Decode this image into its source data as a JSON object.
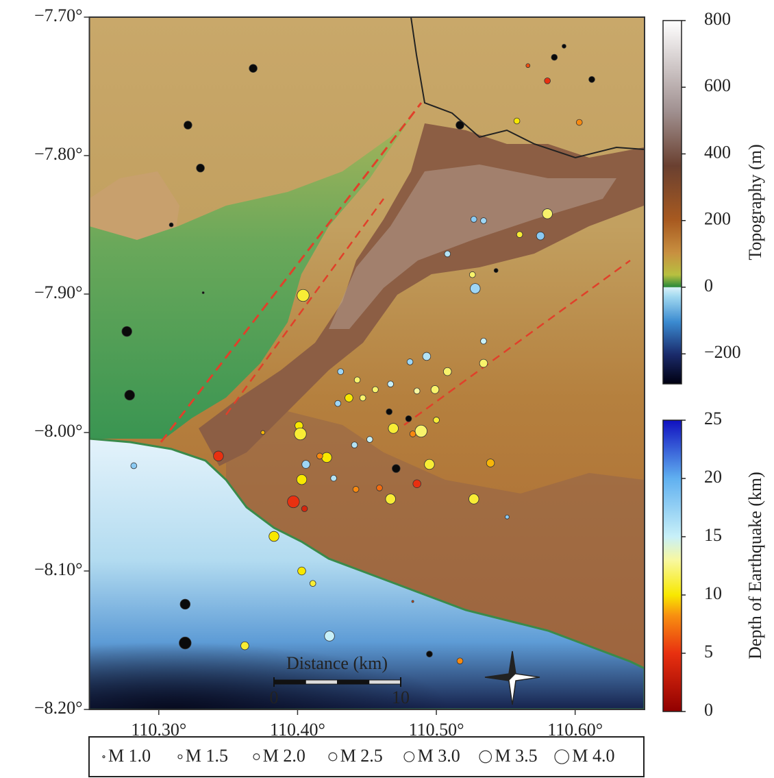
{
  "map": {
    "xlim": [
      110.25,
      110.65
    ],
    "ylim": [
      -8.2,
      -7.7
    ],
    "xticks": [
      {
        "value": 110.3,
        "label": "110.30°"
      },
      {
        "value": 110.4,
        "label": "110.40°"
      },
      {
        "value": 110.5,
        "label": "110.50°"
      },
      {
        "value": 110.6,
        "label": "110.60°"
      }
    ],
    "yticks": [
      {
        "value": -7.7,
        "label": "−7.70°"
      },
      {
        "value": -7.8,
        "label": "−7.80°"
      },
      {
        "value": -7.9,
        "label": "−7.90°"
      },
      {
        "value": -8.0,
        "label": "−8.00°"
      },
      {
        "value": -8.1,
        "label": "−8.10°"
      },
      {
        "value": -8.2,
        "label": "−8.20°"
      }
    ],
    "topography_colorbar": {
      "title": "Topography (m)",
      "lim": [
        -290,
        800
      ],
      "ticks": [
        800,
        600,
        400,
        200,
        0,
        {
          "value": -200,
          "label": "−200"
        }
      ]
    },
    "depth_colorbar": {
      "title": "Depth of Earthquake (km)",
      "lim": [
        0,
        25
      ],
      "ticks": [
        25,
        20,
        15,
        10,
        5,
        0
      ]
    },
    "scale_bar": {
      "title": "Distance (km)",
      "ticks": [
        0,
        10
      ]
    },
    "legend": [
      {
        "label": "M 1.0",
        "magnitude": 1.0
      },
      {
        "label": "M 1.5",
        "magnitude": 1.5
      },
      {
        "label": "M 2.0",
        "magnitude": 2.0
      },
      {
        "label": "M 2.5",
        "magnitude": 2.5
      },
      {
        "label": "M 3.0",
        "magnitude": 3.0
      },
      {
        "label": "M 3.5",
        "magnitude": 3.5
      },
      {
        "label": "M 4.0",
        "magnitude": 4.0
      }
    ],
    "earthquakes": {
      "lon": [
        110.368,
        110.321,
        110.33,
        110.309,
        110.332,
        110.277,
        110.279,
        110.319,
        110.319,
        110.495,
        110.471,
        110.517,
        110.585,
        110.592,
        110.612,
        110.543,
        110.466,
        110.48,
        110.566,
        110.58,
        110.603,
        110.558,
        110.527,
        110.534,
        110.56,
        110.575,
        110.58,
        110.508,
        110.526,
        110.528,
        110.534,
        110.534,
        110.508,
        110.493,
        110.481,
        110.431,
        110.443,
        110.456,
        110.467,
        110.486,
        110.499,
        110.447,
        110.437,
        110.429,
        110.469,
        110.489,
        110.5,
        110.483,
        110.452,
        110.441,
        110.401,
        110.402,
        110.375,
        110.421,
        110.406,
        110.495,
        110.539,
        110.403,
        110.426,
        110.442,
        110.459,
        110.467,
        110.486,
        110.527,
        110.397,
        110.405,
        110.383,
        110.403,
        110.411,
        110.423,
        110.362,
        110.517,
        110.343,
        110.282,
        110.404,
        110.551,
        110.483,
        110.416
      ],
      "lat": [
        -7.737,
        -7.778,
        -7.809,
        -7.85,
        -7.899,
        -7.927,
        -7.973,
        -8.124,
        -8.152,
        -8.16,
        -8.026,
        -7.778,
        -7.729,
        -7.721,
        -7.745,
        -7.883,
        -7.985,
        -7.99,
        -7.735,
        -7.746,
        -7.776,
        -7.775,
        -7.846,
        -7.847,
        -7.857,
        -7.858,
        -7.842,
        -7.871,
        -7.886,
        -7.896,
        -7.934,
        -7.95,
        -7.956,
        -7.945,
        -7.949,
        -7.956,
        -7.962,
        -7.969,
        -7.965,
        -7.97,
        -7.969,
        -7.975,
        -7.975,
        -7.979,
        -7.997,
        -7.999,
        -7.991,
        -8.001,
        -8.005,
        -8.009,
        -7.995,
        -8.001,
        -8.0,
        -8.018,
        -8.023,
        -8.023,
        -8.022,
        -8.034,
        -8.033,
        -8.041,
        -8.04,
        -8.048,
        -8.037,
        -8.048,
        -8.05,
        -8.055,
        -8.075,
        -8.1,
        -8.109,
        -8.147,
        -8.154,
        -8.165,
        -8.017,
        -8.024,
        -7.901,
        -8.061,
        -8.122,
        -8.017
      ],
      "depth": [
        30,
        30,
        30,
        30,
        30,
        30,
        30,
        30,
        30,
        30,
        30,
        30,
        30,
        30,
        30,
        30,
        30,
        30,
        6,
        5,
        8,
        10,
        18,
        17,
        11,
        18,
        12,
        16,
        12,
        17,
        15,
        12,
        12,
        16,
        17,
        17,
        12,
        12,
        15,
        13,
        12,
        12,
        10,
        17,
        11,
        12,
        11,
        8,
        15,
        16,
        10,
        11,
        9,
        10,
        17,
        11,
        9,
        10,
        16,
        8,
        7,
        11,
        5,
        11,
        5,
        4,
        10,
        10,
        11,
        15,
        11,
        8,
        5,
        18,
        11,
        18,
        6,
        8
      ],
      "mag": [
        2.5,
        2.5,
        2.5,
        1.5,
        1.0,
        3.0,
        3.0,
        3.0,
        3.5,
        2.0,
        2.5,
        2.5,
        2.0,
        1.5,
        2.0,
        1.5,
        2.0,
        2.0,
        1.5,
        2.0,
        2.0,
        2.0,
        2.0,
        2.0,
        2.0,
        2.5,
        3.0,
        2.0,
        2.0,
        3.0,
        2.0,
        2.5,
        2.5,
        2.5,
        2.0,
        2.0,
        2.0,
        2.0,
        2.0,
        2.0,
        2.5,
        2.0,
        2.5,
        2.0,
        3.0,
        3.5,
        2.0,
        2.0,
        2.0,
        2.0,
        2.5,
        3.5,
        1.5,
        3.0,
        2.5,
        3.0,
        2.5,
        3.0,
        2.0,
        2.0,
        2.0,
        3.0,
        2.5,
        3.0,
        3.5,
        2.0,
        3.0,
        2.5,
        2.0,
        3.0,
        2.5,
        2.0,
        3.0,
        2.0,
        3.5,
        1.5,
        1.0,
        2.0
      ]
    }
  }
}
